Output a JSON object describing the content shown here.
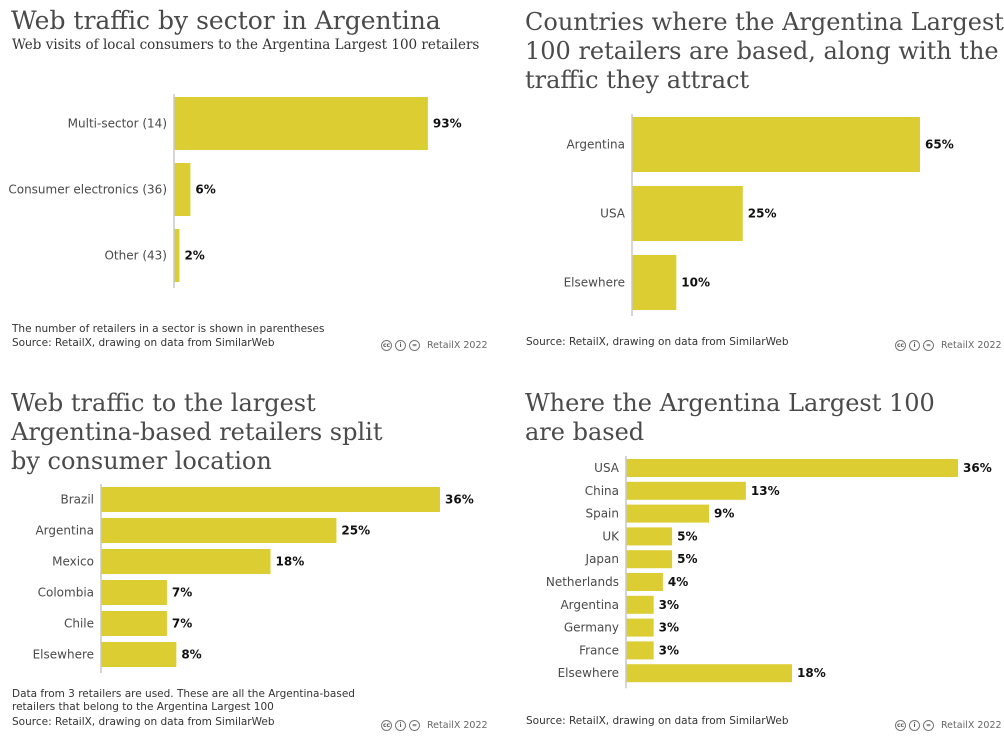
{
  "theme": {
    "bar_color": "#dccd33",
    "axis_color": "#c8c8c8",
    "label_color": "#4a4a4a",
    "value_color": "#111111"
  },
  "credit": {
    "text": "RetailX 2022",
    "icons": [
      "cc-icon",
      "by-icon",
      "nd-icon"
    ],
    "glyphs": [
      "cc",
      "i",
      "="
    ]
  },
  "chart_data": [
    {
      "type": "bar",
      "orientation": "horizontal",
      "title": "Web traffic by sector in Argentina",
      "subtitle": "Web visits of local consumers to the Argentina Largest 100 retailers",
      "categories": [
        "Multi-sector (14)",
        "Consumer electronics (36)",
        "Other (43)"
      ],
      "values": [
        93,
        6,
        2
      ],
      "value_labels": [
        "93%",
        "6%",
        "2%"
      ],
      "xlim": [
        0,
        100
      ],
      "notes": [
        "The number of retailers in a sector is shown in parentheses",
        "Source: RetailX, drawing on data from SimilarWeb"
      ]
    },
    {
      "type": "bar",
      "orientation": "horizontal",
      "title_lines": [
        "Countries where the Argentina Largest",
        "100 retailers are based, along with the",
        "traffic they attract"
      ],
      "categories": [
        "Argentina",
        "USA",
        "Elsewhere"
      ],
      "values": [
        65,
        25,
        10
      ],
      "value_labels": [
        "65%",
        "25%",
        "10%"
      ],
      "xlim": [
        0,
        65
      ],
      "notes": [
        "Source: RetailX, drawing on data from SimilarWeb"
      ]
    },
    {
      "type": "bar",
      "orientation": "horizontal",
      "title_lines": [
        "Web traffic to the largest",
        "Argentina-based retailers split",
        "by consumer location"
      ],
      "categories": [
        "Brazil",
        "Argentina",
        "Mexico",
        "Colombia",
        "Chile",
        "Elsewhere"
      ],
      "values": [
        36,
        25,
        18,
        7,
        7,
        8
      ],
      "value_labels": [
        "36%",
        "25%",
        "18%",
        "7%",
        "7%",
        "8%"
      ],
      "xlim": [
        0,
        36
      ],
      "notes": [
        "Data from 3 retailers are used. These are all the Argentina-based",
        "retailers that belong to the Argentina Largest 100",
        "Source: RetailX, drawing on data from SimilarWeb"
      ]
    },
    {
      "type": "bar",
      "orientation": "horizontal",
      "title_lines": [
        "Where the Argentina Largest 100",
        "are based"
      ],
      "categories": [
        "USA",
        "China",
        "Spain",
        "UK",
        "Japan",
        "Netherlands",
        "Argentina",
        "Germany",
        "France",
        "Elsewhere"
      ],
      "values": [
        36,
        13,
        9,
        5,
        5,
        4,
        3,
        3,
        3,
        18
      ],
      "value_labels": [
        "36%",
        "13%",
        "9%",
        "5%",
        "5%",
        "4%",
        "3%",
        "3%",
        "3%",
        "18%"
      ],
      "xlim": [
        0,
        36
      ],
      "notes": [
        "Source: RetailX, drawing on data from SimilarWeb"
      ]
    }
  ]
}
